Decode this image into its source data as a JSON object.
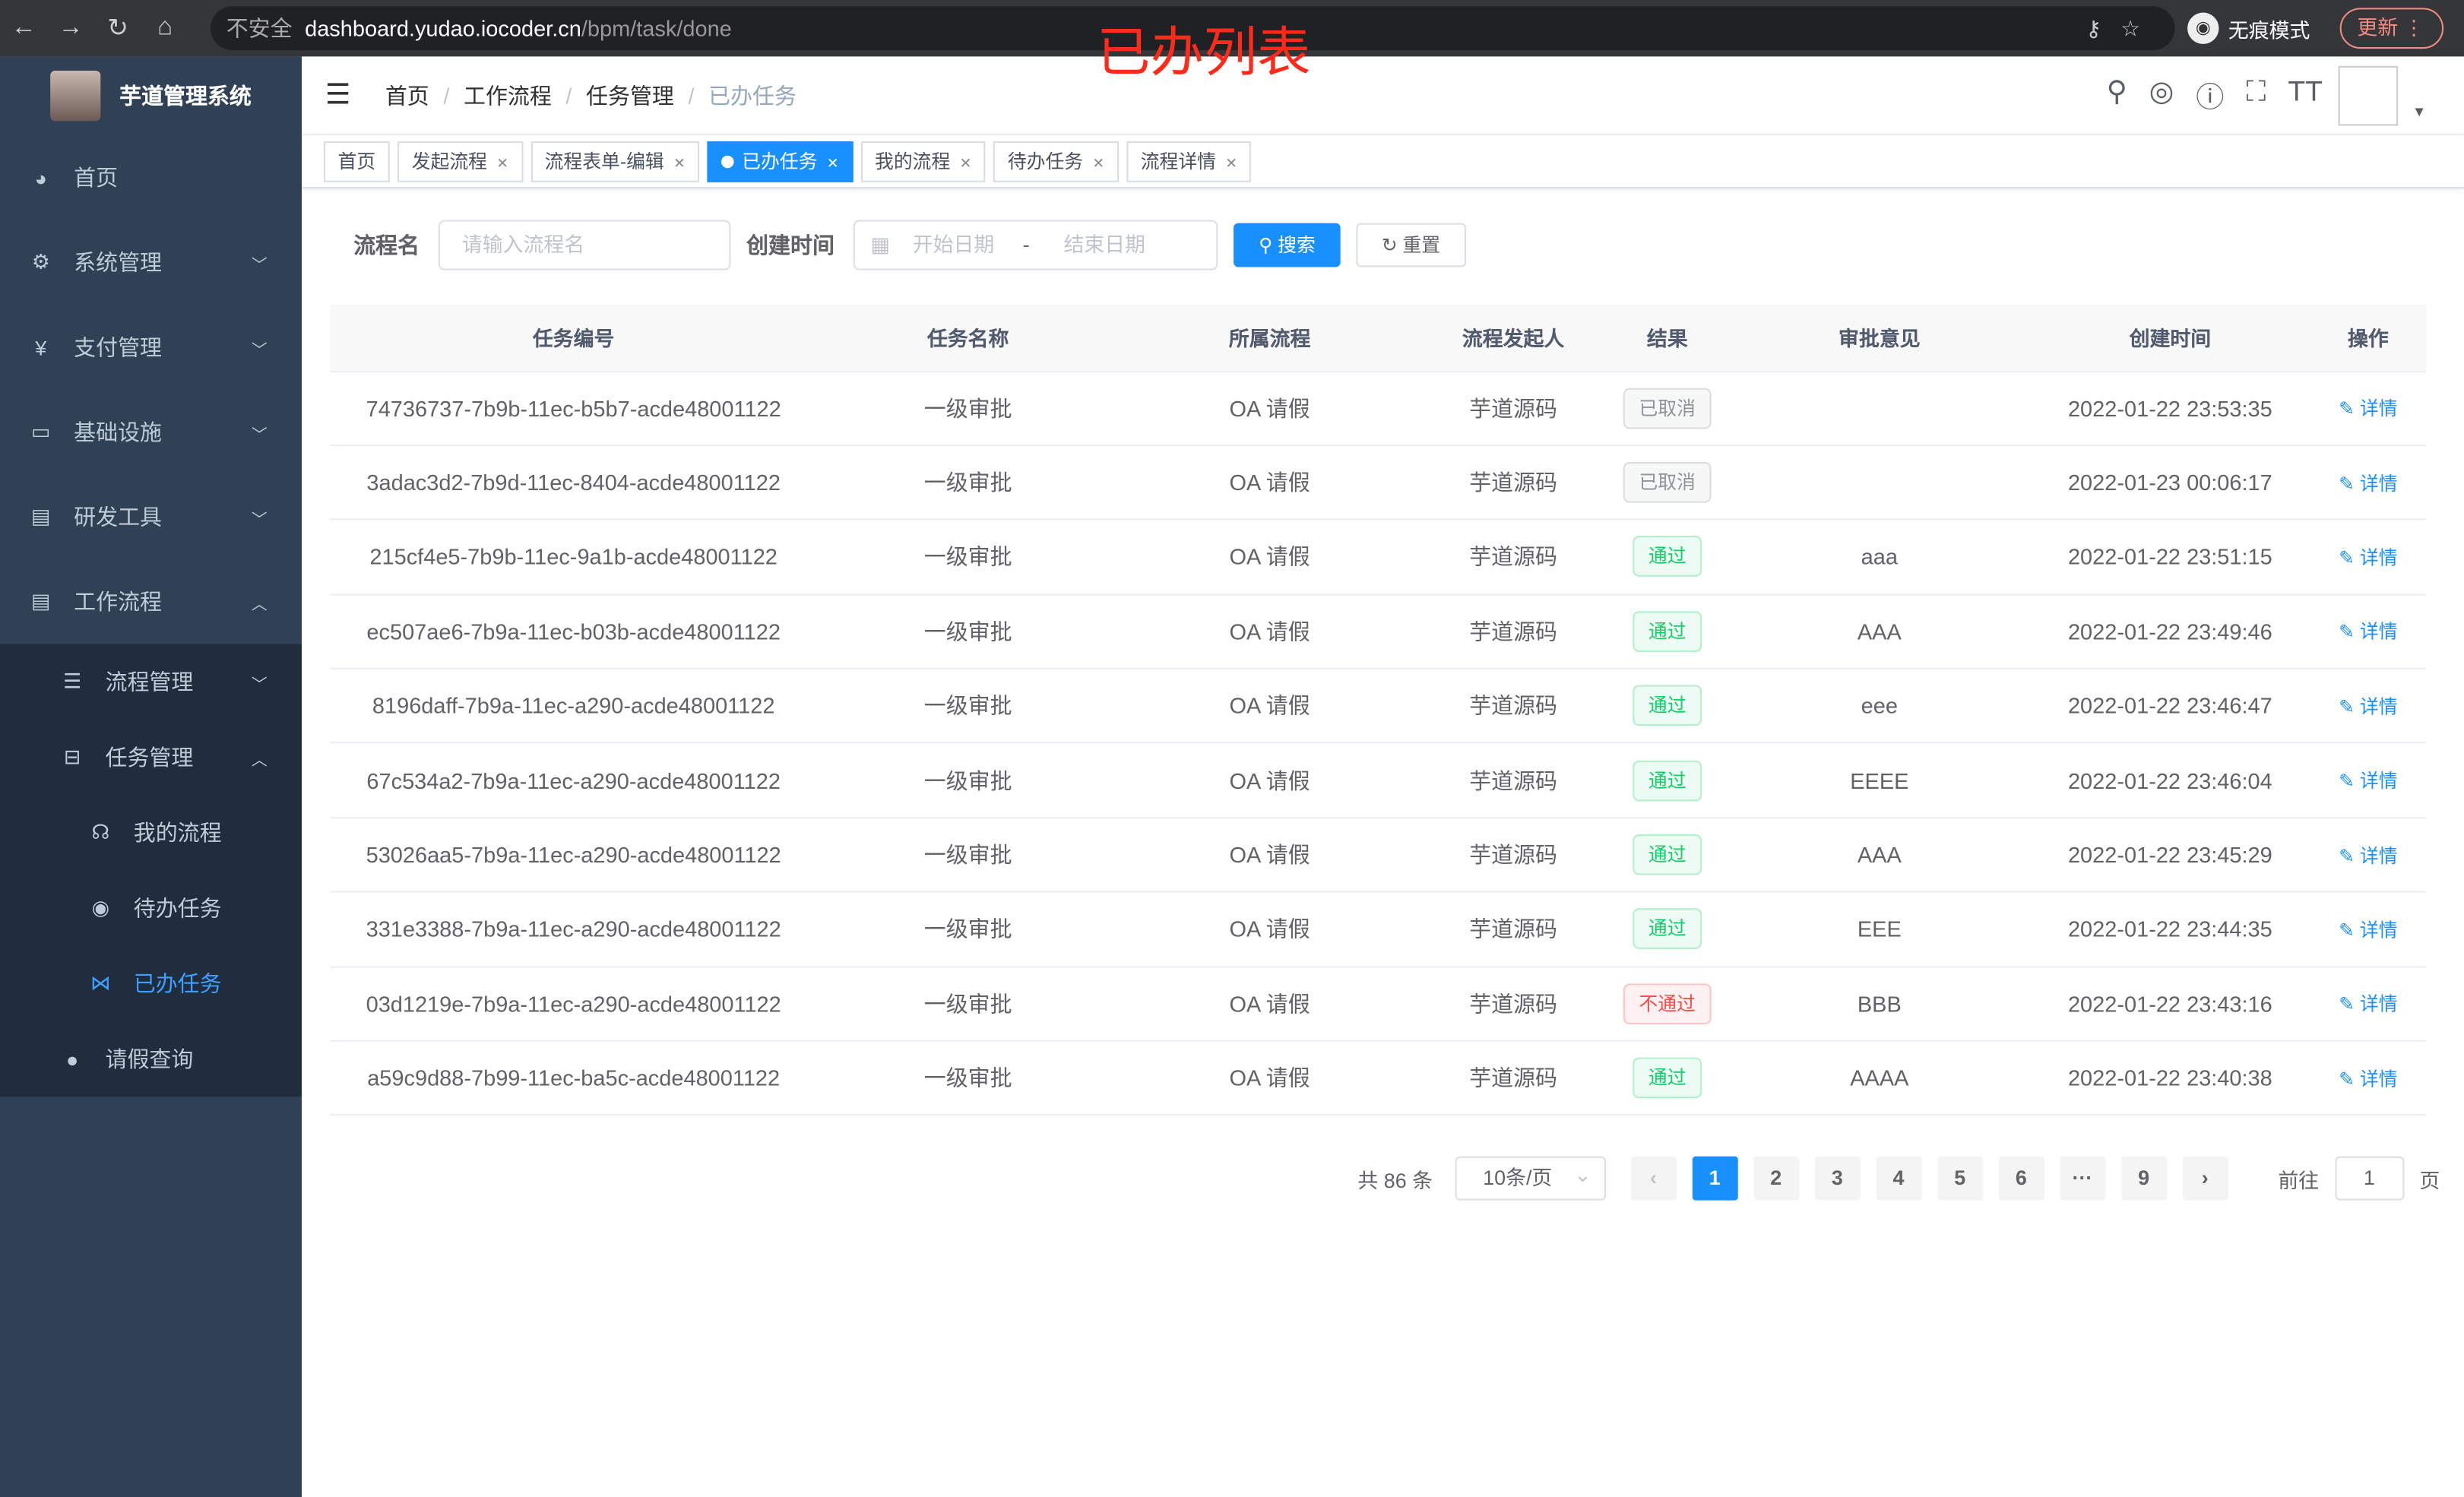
{
  "browser": {
    "security": "不安全",
    "url_host": "dashboard.yudao.iocoder.cn",
    "url_path": "/bpm/task/done",
    "incognito": "无痕模式",
    "update": "更新"
  },
  "overlay_title": "已办列表",
  "sidebar": {
    "logo": "芋道管理系统",
    "items": [
      {
        "label": "首页",
        "icon": "dashboard-icon"
      },
      {
        "label": "系统管理",
        "icon": "gear-icon"
      },
      {
        "label": "支付管理",
        "icon": "yen-icon"
      },
      {
        "label": "基础设施",
        "icon": "monitor-icon"
      },
      {
        "label": "研发工具",
        "icon": "toolbox-icon"
      },
      {
        "label": "工作流程",
        "icon": "briefcase-icon"
      },
      {
        "label": "流程管理",
        "icon": "list-icon"
      },
      {
        "label": "任务管理",
        "icon": "tree-icon"
      },
      {
        "label": "我的流程",
        "icon": "headset-icon"
      },
      {
        "label": "待办任务",
        "icon": "eye-icon"
      },
      {
        "label": "已办任务",
        "icon": "done-icon"
      },
      {
        "label": "请假查询",
        "icon": "user-icon"
      }
    ]
  },
  "breadcrumb": [
    "首页",
    "工作流程",
    "任务管理",
    "已办任务"
  ],
  "tags": [
    "首页",
    "发起流程",
    "流程表单-编辑",
    "已办任务",
    "我的流程",
    "待办任务",
    "流程详情"
  ],
  "form": {
    "name_label": "流程名",
    "name_placeholder": "请输入流程名",
    "time_label": "创建时间",
    "start_placeholder": "开始日期",
    "sep": "-",
    "end_placeholder": "结束日期",
    "search": "搜索",
    "reset": "重置"
  },
  "table": {
    "headers": [
      "任务编号",
      "任务名称",
      "所属流程",
      "流程发起人",
      "结果",
      "审批意见",
      "创建时间",
      "操作"
    ],
    "rows": [
      [
        "74736737-7b9b-11ec-b5b7-acde48001122",
        "一级审批",
        "OA 请假",
        "芋道源码",
        "已取消",
        "",
        "2022-01-22 23:53:35",
        "详情"
      ],
      [
        "3adac3d2-7b9d-11ec-8404-acde48001122",
        "一级审批",
        "OA 请假",
        "芋道源码",
        "已取消",
        "",
        "2022-01-23 00:06:17",
        "详情"
      ],
      [
        "215cf4e5-7b9b-11ec-9a1b-acde48001122",
        "一级审批",
        "OA 请假",
        "芋道源码",
        "通过",
        "aaa",
        "2022-01-22 23:51:15",
        "详情"
      ],
      [
        "ec507ae6-7b9a-11ec-b03b-acde48001122",
        "一级审批",
        "OA 请假",
        "芋道源码",
        "通过",
        "AAA",
        "2022-01-22 23:49:46",
        "详情"
      ],
      [
        "8196daff-7b9a-11ec-a290-acde48001122",
        "一级审批",
        "OA 请假",
        "芋道源码",
        "通过",
        "eee",
        "2022-01-22 23:46:47",
        "详情"
      ],
      [
        "67c534a2-7b9a-11ec-a290-acde48001122",
        "一级审批",
        "OA 请假",
        "芋道源码",
        "通过",
        "EEEE",
        "2022-01-22 23:46:04",
        "详情"
      ],
      [
        "53026aa5-7b9a-11ec-a290-acde48001122",
        "一级审批",
        "OA 请假",
        "芋道源码",
        "通过",
        "AAA",
        "2022-01-22 23:45:29",
        "详情"
      ],
      [
        "331e3388-7b9a-11ec-a290-acde48001122",
        "一级审批",
        "OA 请假",
        "芋道源码",
        "通过",
        "EEE",
        "2022-01-22 23:44:35",
        "详情"
      ],
      [
        "03d1219e-7b9a-11ec-a290-acde48001122",
        "一级审批",
        "OA 请假",
        "芋道源码",
        "不通过",
        "BBB",
        "2022-01-22 23:43:16",
        "详情"
      ],
      [
        "a59c9d88-7b99-11ec-ba5c-acde48001122",
        "一级审批",
        "OA 请假",
        "芋道源码",
        "通过",
        "AAAA",
        "2022-01-22 23:40:38",
        "详情"
      ]
    ]
  },
  "result_colors": {
    "已取消": "#909399",
    "通过": "#13ce66",
    "不通过": "#ff4949"
  },
  "pagination": {
    "total": "共 86 条",
    "page_size": "10条/页",
    "pages": [
      "1",
      "2",
      "3",
      "4",
      "5",
      "6",
      "···",
      "9"
    ],
    "current": "1",
    "goto_label": "前往",
    "goto_value": "1",
    "page_unit": "页"
  },
  "accent": "#1890ff"
}
